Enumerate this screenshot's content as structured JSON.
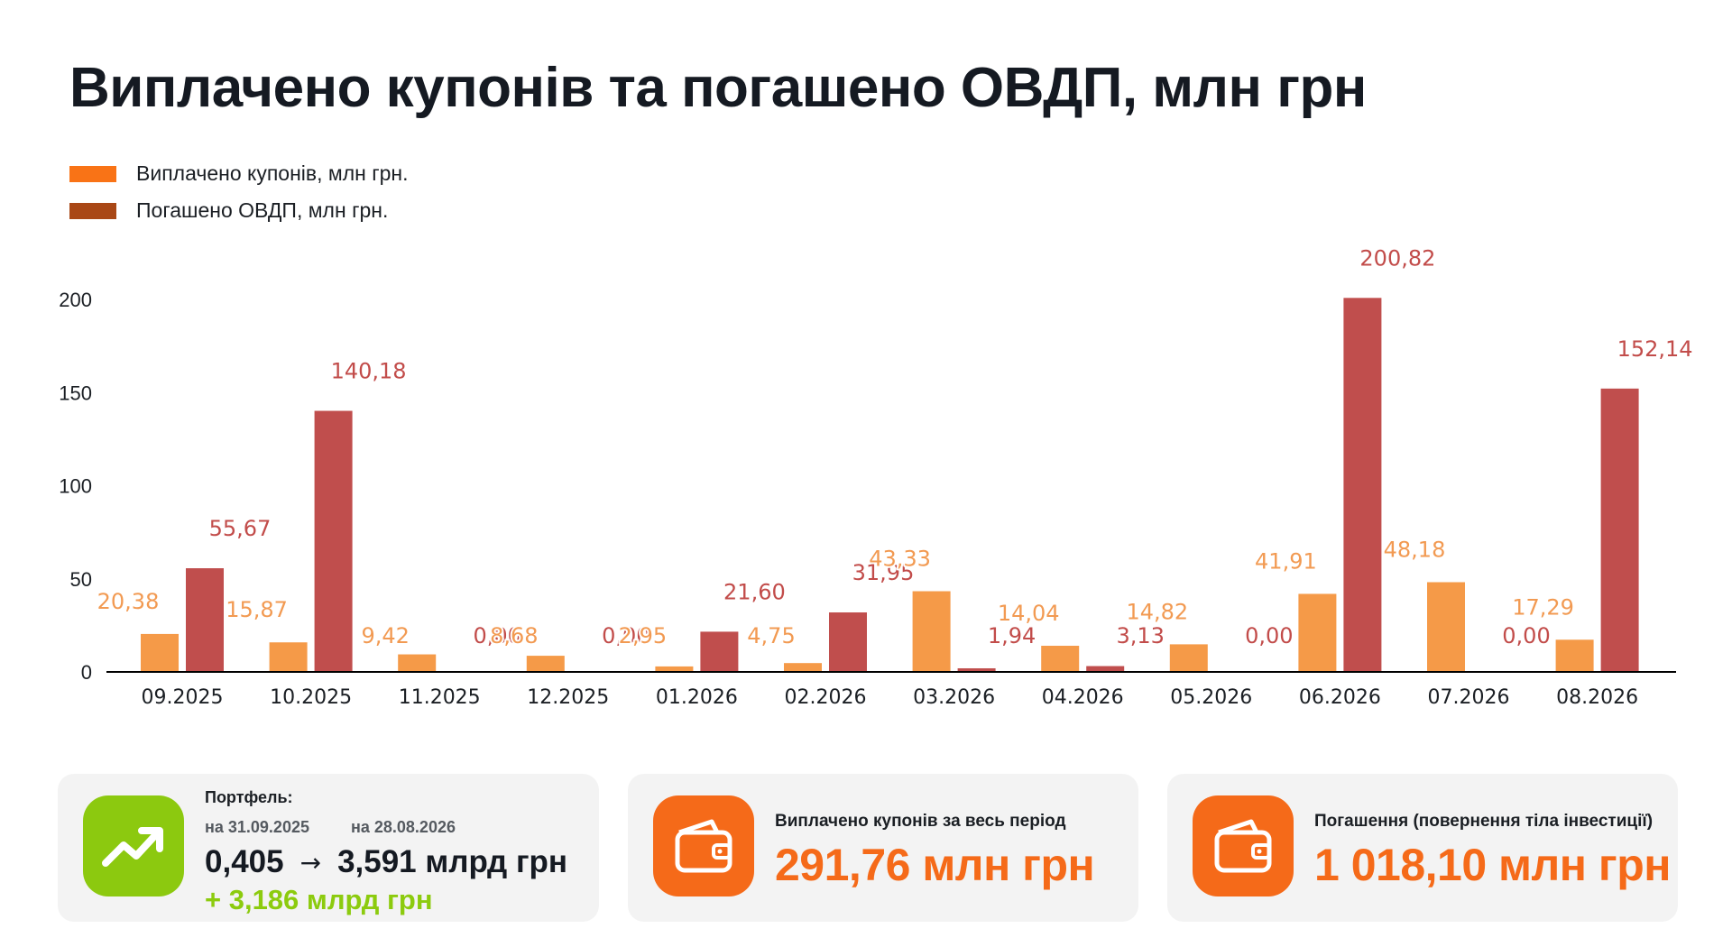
{
  "title": "Виплачено купонів та погашено ОВДП, млн грн",
  "legend": [
    {
      "label": "Виплачено купонів, млн грн.",
      "color": "#f97316"
    },
    {
      "label": "Погашено ОВДП, млн грн.",
      "color": "#a94715"
    }
  ],
  "colors": {
    "coupon_bar": "#f59a48",
    "coupon_label": "#f29a52",
    "redemption_bar": "#c04e4d",
    "redemption_label": "#c24c4a",
    "axis": "#000000",
    "portfolio_icon_bg": "#8cc90f",
    "wallet_icon_bg": "#f56a19",
    "delta_green": "#8ccb0e"
  },
  "chart_data": {
    "type": "bar",
    "categories": [
      "09.2025",
      "10.2025",
      "11.2025",
      "12.2025",
      "01.2026",
      "02.2026",
      "03.2026",
      "04.2026",
      "05.2026",
      "06.2026",
      "07.2026",
      "08.2026"
    ],
    "series": [
      {
        "name": "Виплачено купонів, млн грн.",
        "values": [
          20.38,
          15.87,
          9.42,
          8.68,
          2.95,
          4.75,
          43.33,
          14.04,
          14.82,
          41.91,
          48.18,
          17.29
        ],
        "labels": [
          "20,38",
          "15,87",
          "9,42",
          "8,68",
          "2,95",
          "4,75",
          "43,33",
          "14,04",
          "14,82",
          "41,91",
          "48,18",
          "17,29"
        ]
      },
      {
        "name": "Погашено ОВДП, млн грн.",
        "values": [
          55.67,
          140.18,
          0.0,
          0.0,
          21.6,
          31.95,
          1.94,
          3.13,
          0.0,
          200.82,
          0.0,
          152.14
        ],
        "labels": [
          "55,67",
          "140,18",
          "0,00",
          "0,00",
          "21,60",
          "31,95",
          "1,94",
          "3,13",
          "0,00",
          "200,82",
          "0,00",
          "152,14"
        ]
      }
    ],
    "y_ticks": [
      "0",
      "50",
      "100",
      "150",
      "200"
    ],
    "ylim": [
      0,
      200
    ],
    "grid": false,
    "legend_position": "top-left"
  },
  "cards": {
    "portfolio": {
      "icon": "trend-up-icon",
      "heading": "Портфель:",
      "date_start": "на 31.09.2025",
      "date_end": "на 28.08.2026",
      "value_start": "0,405",
      "arrow": "→",
      "value_end": "3,591 млрд грн",
      "delta": "+ 3,186 млрд грн"
    },
    "coupons": {
      "icon": "wallet-icon",
      "caption": "Виплачено купонів за весь період",
      "value": "291,76 млн грн"
    },
    "redemptions": {
      "icon": "wallet-icon",
      "caption": "Погашення (повернення тіла інвестиції)",
      "value": "1 018,10 млн грн"
    }
  }
}
